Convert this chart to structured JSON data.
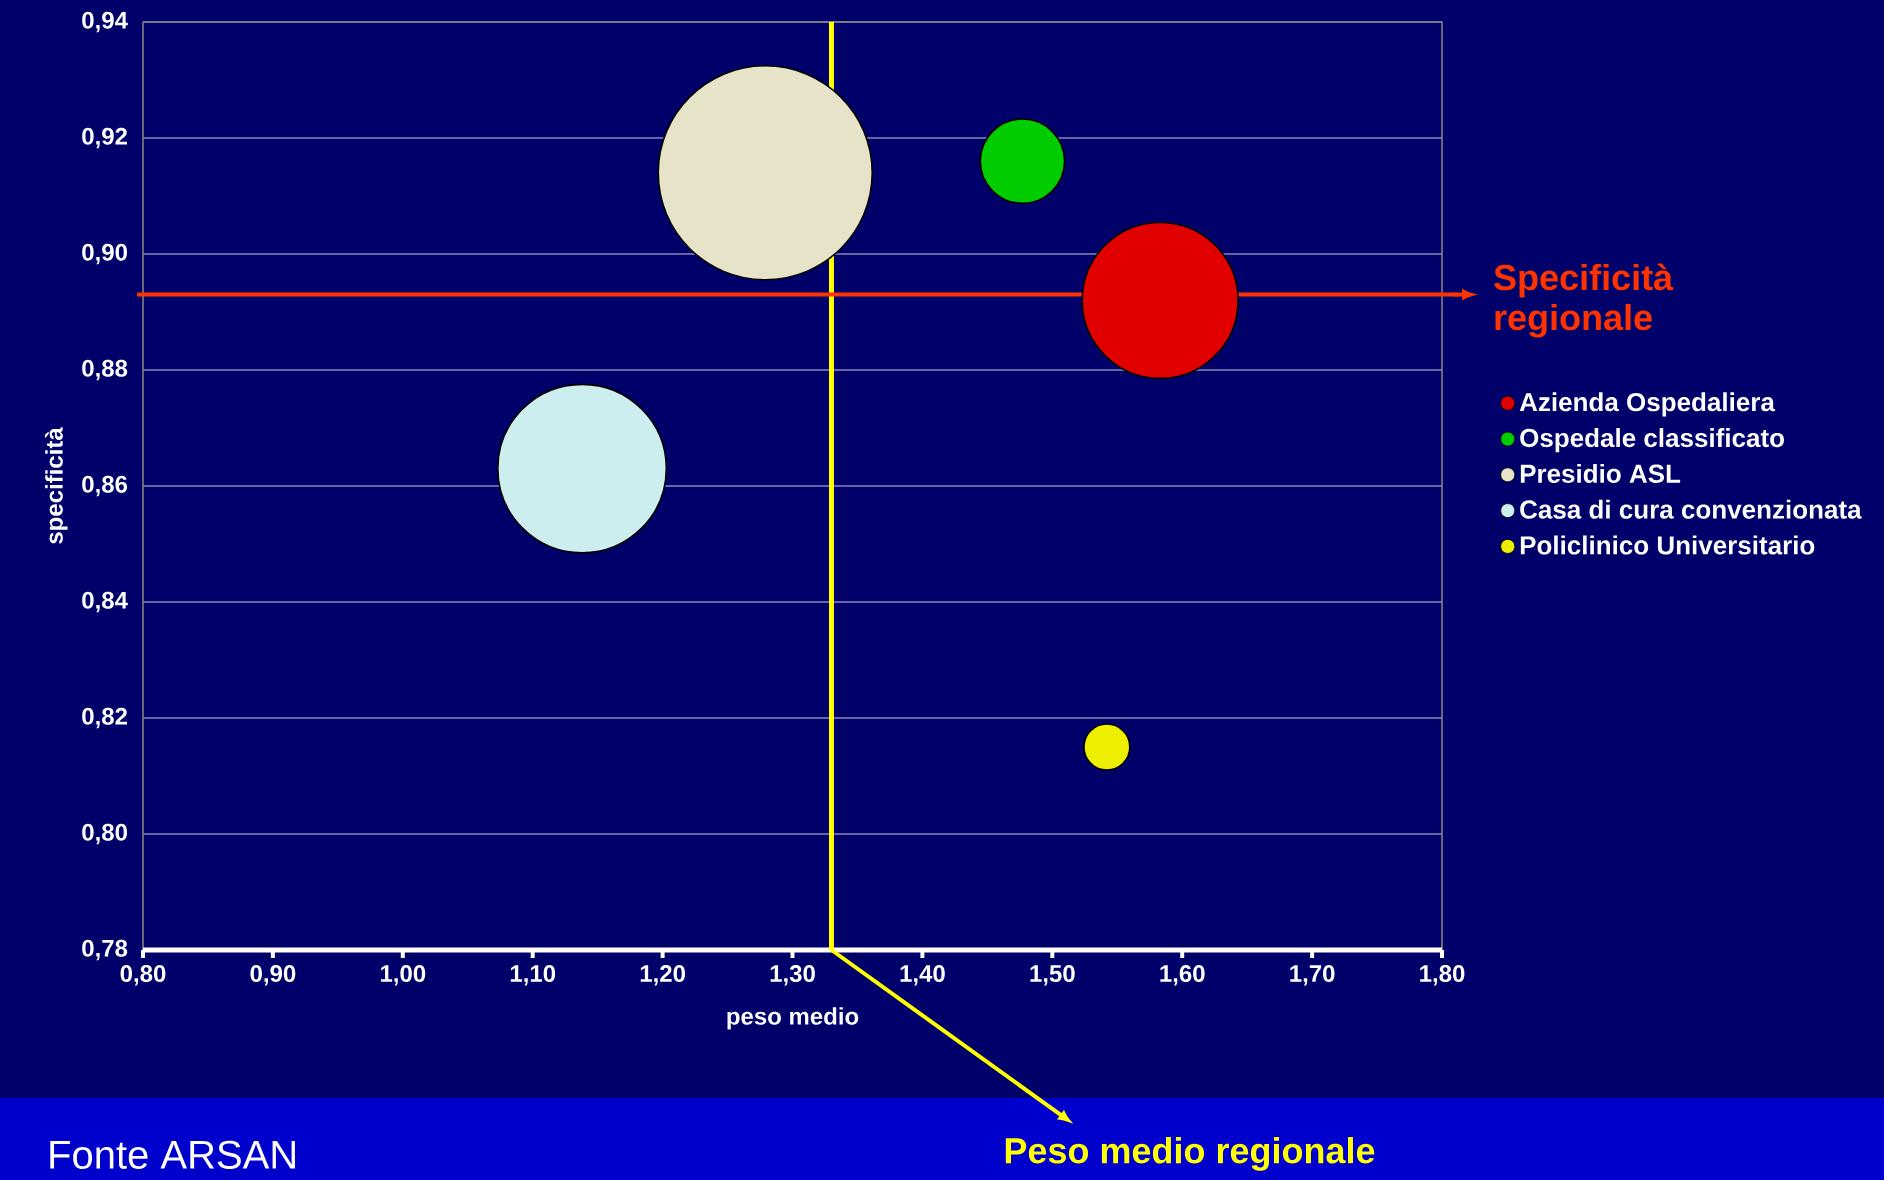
{
  "chart_data": {
    "type": "bubble",
    "xlabel": "peso medio",
    "ylabel": "specificità",
    "xlim": [
      0.8,
      1.8
    ],
    "ylim": [
      0.78,
      0.94
    ],
    "xticks": [
      {
        "value": 0.8,
        "label": "0,80"
      },
      {
        "value": 0.9,
        "label": "0,90"
      },
      {
        "value": 1.0,
        "label": "1,00"
      },
      {
        "value": 1.1,
        "label": "1,10"
      },
      {
        "value": 1.2,
        "label": "1,20"
      },
      {
        "value": 1.3,
        "label": "1,30"
      },
      {
        "value": 1.4,
        "label": "1,40"
      },
      {
        "value": 1.5,
        "label": "1,50"
      },
      {
        "value": 1.6,
        "label": "1,60"
      },
      {
        "value": 1.7,
        "label": "1,70"
      },
      {
        "value": 1.8,
        "label": "1,80"
      }
    ],
    "yticks": [
      {
        "value": 0.78,
        "label": "0,78"
      },
      {
        "value": 0.8,
        "label": "0,80"
      },
      {
        "value": 0.82,
        "label": "0,82"
      },
      {
        "value": 0.84,
        "label": "0,84"
      },
      {
        "value": 0.86,
        "label": "0,86"
      },
      {
        "value": 0.88,
        "label": "0,88"
      },
      {
        "value": 0.9,
        "label": "0,90"
      },
      {
        "value": 0.92,
        "label": "0,92"
      },
      {
        "value": 0.94,
        "label": "0,94"
      }
    ],
    "series": [
      {
        "name": "Azienda Ospedaliera",
        "color": "#e00000",
        "x": [
          1.583
        ],
        "values": [
          0.892
        ],
        "sizes": [
          0.53
        ]
      },
      {
        "name": "Ospedale classificato",
        "color": "#00cc00",
        "x": [
          1.477
        ],
        "values": [
          0.916
        ],
        "sizes": [
          0.155
        ]
      },
      {
        "name": "Presidio ASL",
        "color": "#e6e3c8",
        "x": [
          1.279
        ],
        "values": [
          0.914
        ],
        "sizes": [
          1
        ]
      },
      {
        "name": "Casa di cura convenzionata",
        "color": "#cdeeee",
        "x": [
          1.138
        ],
        "values": [
          0.863
        ],
        "sizes": [
          0.62
        ]
      },
      {
        "name": "Policlinico Universitario",
        "color": "#eeee00",
        "x": [
          1.542
        ],
        "values": [
          0.815
        ],
        "sizes": [
          0.046
        ]
      }
    ],
    "ref_lines": [
      {
        "axis": "x",
        "value": 1.33,
        "label": "Peso medio regionale",
        "color": "#ffff00"
      },
      {
        "axis": "y",
        "value": 0.893,
        "label": "Specificità regionale",
        "color": "#ff3300"
      }
    ],
    "annotations": [
      "Fonte ARSAN"
    ],
    "grid": "y",
    "legend": "right",
    "marker": "circle"
  }
}
